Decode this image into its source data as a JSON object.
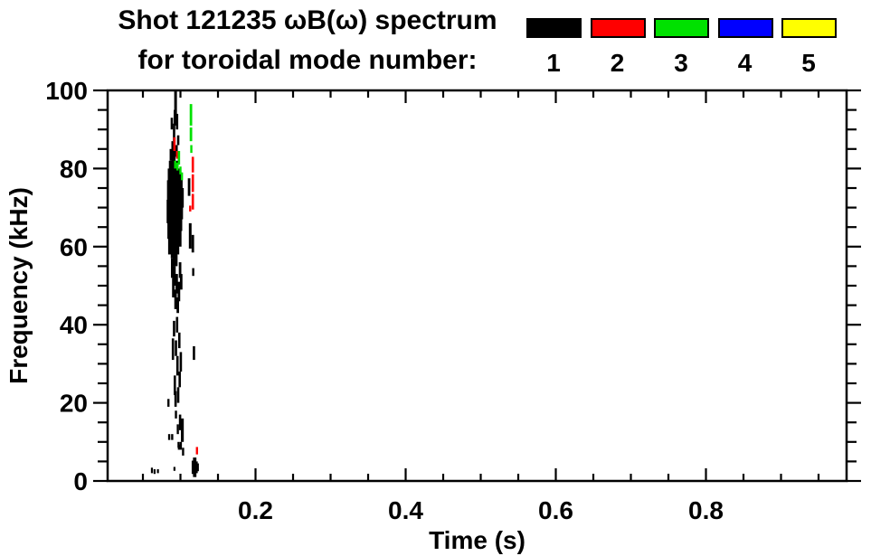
{
  "chart_data": {
    "type": "scatter",
    "subtype": "magnetic-spectrogram",
    "title_line1": "Shot 121235 ωB(ω) spectrum",
    "title_line2": "for toroidal mode number:",
    "xlabel": "Time (s)",
    "ylabel": "Frequency (kHz)",
    "xlim": [
      0.0,
      0.99
    ],
    "ylim": [
      0,
      100
    ],
    "x_major_ticks": [
      0.2,
      0.4,
      0.6,
      0.8
    ],
    "x_minor_step": 0.05,
    "y_major_ticks": [
      0,
      20,
      40,
      60,
      80,
      100
    ],
    "y_minor_step": 5,
    "grid": false,
    "legend_position": "top-right",
    "background_color": "#ffffff",
    "frame_color": "#000000",
    "legend": [
      {
        "label": "1",
        "color": "#000000"
      },
      {
        "label": "2",
        "color": "#ff0000"
      },
      {
        "label": "3",
        "color": "#00e100"
      },
      {
        "label": "4",
        "color": "#0000ff"
      },
      {
        "label": "5",
        "color": "#ffff00"
      }
    ],
    "series": [
      {
        "name": "1",
        "color": "#000000",
        "segments": [
          [
            0.0935,
            93,
            100,
            3
          ],
          [
            0.0955,
            90,
            94,
            2.6
          ],
          [
            0.0915,
            87,
            91.5,
            2.6
          ],
          [
            0.0895,
            84,
            87,
            2.6
          ],
          [
            0.097,
            86,
            88.5,
            2.6
          ],
          [
            0.0925,
            91,
            95,
            2.6
          ],
          [
            0.0885,
            90,
            93,
            2.6
          ],
          [
            0.084,
            66,
            72,
            4
          ],
          [
            0.0845,
            71,
            77,
            4
          ],
          [
            0.085,
            62,
            68,
            4
          ],
          [
            0.0855,
            74,
            80,
            4
          ],
          [
            0.086,
            58,
            65,
            4
          ],
          [
            0.0865,
            68,
            75,
            4
          ],
          [
            0.087,
            76,
            82,
            4
          ],
          [
            0.0875,
            61,
            67,
            4
          ],
          [
            0.088,
            70,
            77,
            4
          ],
          [
            0.0885,
            64,
            70,
            4
          ],
          [
            0.089,
            73,
            80,
            4
          ],
          [
            0.0895,
            57,
            63,
            4
          ],
          [
            0.09,
            66,
            73,
            4
          ],
          [
            0.0905,
            77,
            83,
            4
          ],
          [
            0.091,
            60,
            67,
            4
          ],
          [
            0.0915,
            70,
            76,
            4
          ],
          [
            0.092,
            63,
            70,
            4
          ],
          [
            0.0925,
            74,
            81,
            4
          ],
          [
            0.093,
            57,
            64,
            4
          ],
          [
            0.0935,
            67,
            74,
            4
          ],
          [
            0.094,
            72,
            79,
            4
          ],
          [
            0.0945,
            61,
            68,
            4
          ],
          [
            0.095,
            76,
            82,
            4
          ],
          [
            0.0955,
            65,
            71,
            4
          ],
          [
            0.096,
            58,
            64,
            4
          ],
          [
            0.0965,
            69,
            76,
            4
          ],
          [
            0.097,
            73,
            79,
            4
          ],
          [
            0.0975,
            62,
            68,
            4
          ],
          [
            0.098,
            66,
            73,
            4
          ],
          [
            0.0985,
            75,
            80,
            4
          ],
          [
            0.099,
            60,
            66,
            4
          ],
          [
            0.0995,
            70,
            76,
            4
          ],
          [
            0.1,
            64,
            70,
            4
          ],
          [
            0.1005,
            73,
            78,
            4
          ],
          [
            0.101,
            67,
            72,
            4
          ],
          [
            0.102,
            70,
            75,
            4
          ],
          [
            0.091,
            82,
            86,
            4
          ],
          [
            0.094,
            83,
            86,
            4
          ],
          [
            0.088,
            82,
            85,
            4
          ],
          [
            0.089,
            52,
            57,
            2.8
          ],
          [
            0.0905,
            47,
            52,
            2.8
          ],
          [
            0.092,
            50,
            55,
            2.8
          ],
          [
            0.0935,
            44,
            49,
            2.8
          ],
          [
            0.095,
            48,
            53,
            2.8
          ],
          [
            0.0965,
            43,
            47,
            2.8
          ],
          [
            0.098,
            46,
            51,
            2.8
          ],
          [
            0.0995,
            52,
            56,
            2.8
          ],
          [
            0.0915,
            55,
            58,
            2.8
          ],
          [
            0.0945,
            55,
            58,
            2.8
          ],
          [
            0.101,
            49,
            53,
            2.8
          ],
          [
            0.0915,
            37,
            41,
            2.6
          ],
          [
            0.094,
            32,
            36,
            2.6
          ],
          [
            0.096,
            27,
            32,
            2.6
          ],
          [
            0.0925,
            22,
            27,
            2.6
          ],
          [
            0.0985,
            34,
            38,
            2.6
          ],
          [
            0.1005,
            28,
            33,
            2.6
          ],
          [
            0.0935,
            19,
            23,
            2.6
          ],
          [
            0.097,
            20,
            24,
            2.6
          ],
          [
            0.099,
            24,
            28,
            2.6
          ],
          [
            0.0955,
            38,
            42,
            2.6
          ],
          [
            0.09,
            31,
            36.5,
            2.6
          ],
          [
            0.0995,
            13,
            17,
            2.6
          ],
          [
            0.1025,
            10,
            16,
            3.2
          ],
          [
            0.0965,
            12,
            14.5,
            2.4
          ],
          [
            0.089,
            10.5,
            12,
            2.4
          ],
          [
            0.1005,
            8,
            10,
            2.4
          ],
          [
            0.1035,
            6.5,
            8.5,
            2.4
          ],
          [
            0.0975,
            8.5,
            10,
            2.4
          ],
          [
            0.094,
            16,
            18,
            2.4
          ],
          [
            0.084,
            19,
            21,
            2.4
          ],
          [
            0.085,
            10.5,
            12,
            2.4
          ],
          [
            0.098,
            8,
            9.3,
            2.4
          ],
          [
            0.092,
            2.6,
            3.6,
            2.2
          ],
          [
            0.062,
            2,
            3.4,
            2.2
          ],
          [
            0.0655,
            1.8,
            3,
            2.2
          ],
          [
            0.07,
            2,
            3,
            2.2
          ],
          [
            0.117,
            1.8,
            5.2,
            3.4
          ],
          [
            0.119,
            1,
            6,
            3.8
          ],
          [
            0.121,
            2,
            5,
            3.4
          ],
          [
            0.123,
            2.5,
            4.5,
            2.6
          ],
          [
            0.1115,
            73,
            77.5,
            2.8
          ],
          [
            0.113,
            59.5,
            66,
            3
          ],
          [
            0.1165,
            58.5,
            63,
            2.8
          ],
          [
            0.117,
            52.5,
            54.5,
            2.4
          ],
          [
            0.118,
            31,
            34.5,
            2.6
          ]
        ]
      },
      {
        "name": "2",
        "color": "#ff0000",
        "segments": [
          [
            0.092,
            84.5,
            88,
            2.6
          ],
          [
            0.0955,
            82.5,
            84.5,
            2.4
          ],
          [
            0.1165,
            79,
            83,
            2.6
          ],
          [
            0.1165,
            74,
            78.5,
            2.6
          ],
          [
            0.1165,
            69.5,
            73.5,
            2.6
          ],
          [
            0.113,
            69,
            70.5,
            2.4
          ],
          [
            0.122,
            6.8,
            8.7,
            2.4
          ]
        ]
      },
      {
        "name": "3",
        "color": "#00e100",
        "segments": [
          [
            0.114,
            91,
            96.5,
            2.8
          ],
          [
            0.114,
            87,
            90.5,
            2.8
          ],
          [
            0.1145,
            84,
            86,
            2.4
          ],
          [
            0.098,
            81,
            84.5,
            2.6
          ],
          [
            0.1,
            78.5,
            80.5,
            2.4
          ],
          [
            0.096,
            79.5,
            81.5,
            2.4
          ],
          [
            0.093,
            80,
            82,
            2.4
          ],
          [
            0.102,
            77,
            79,
            2.4
          ]
        ]
      },
      {
        "name": "4",
        "color": "#0000ff",
        "segments": []
      },
      {
        "name": "5",
        "color": "#ffff00",
        "segments": []
      }
    ]
  }
}
